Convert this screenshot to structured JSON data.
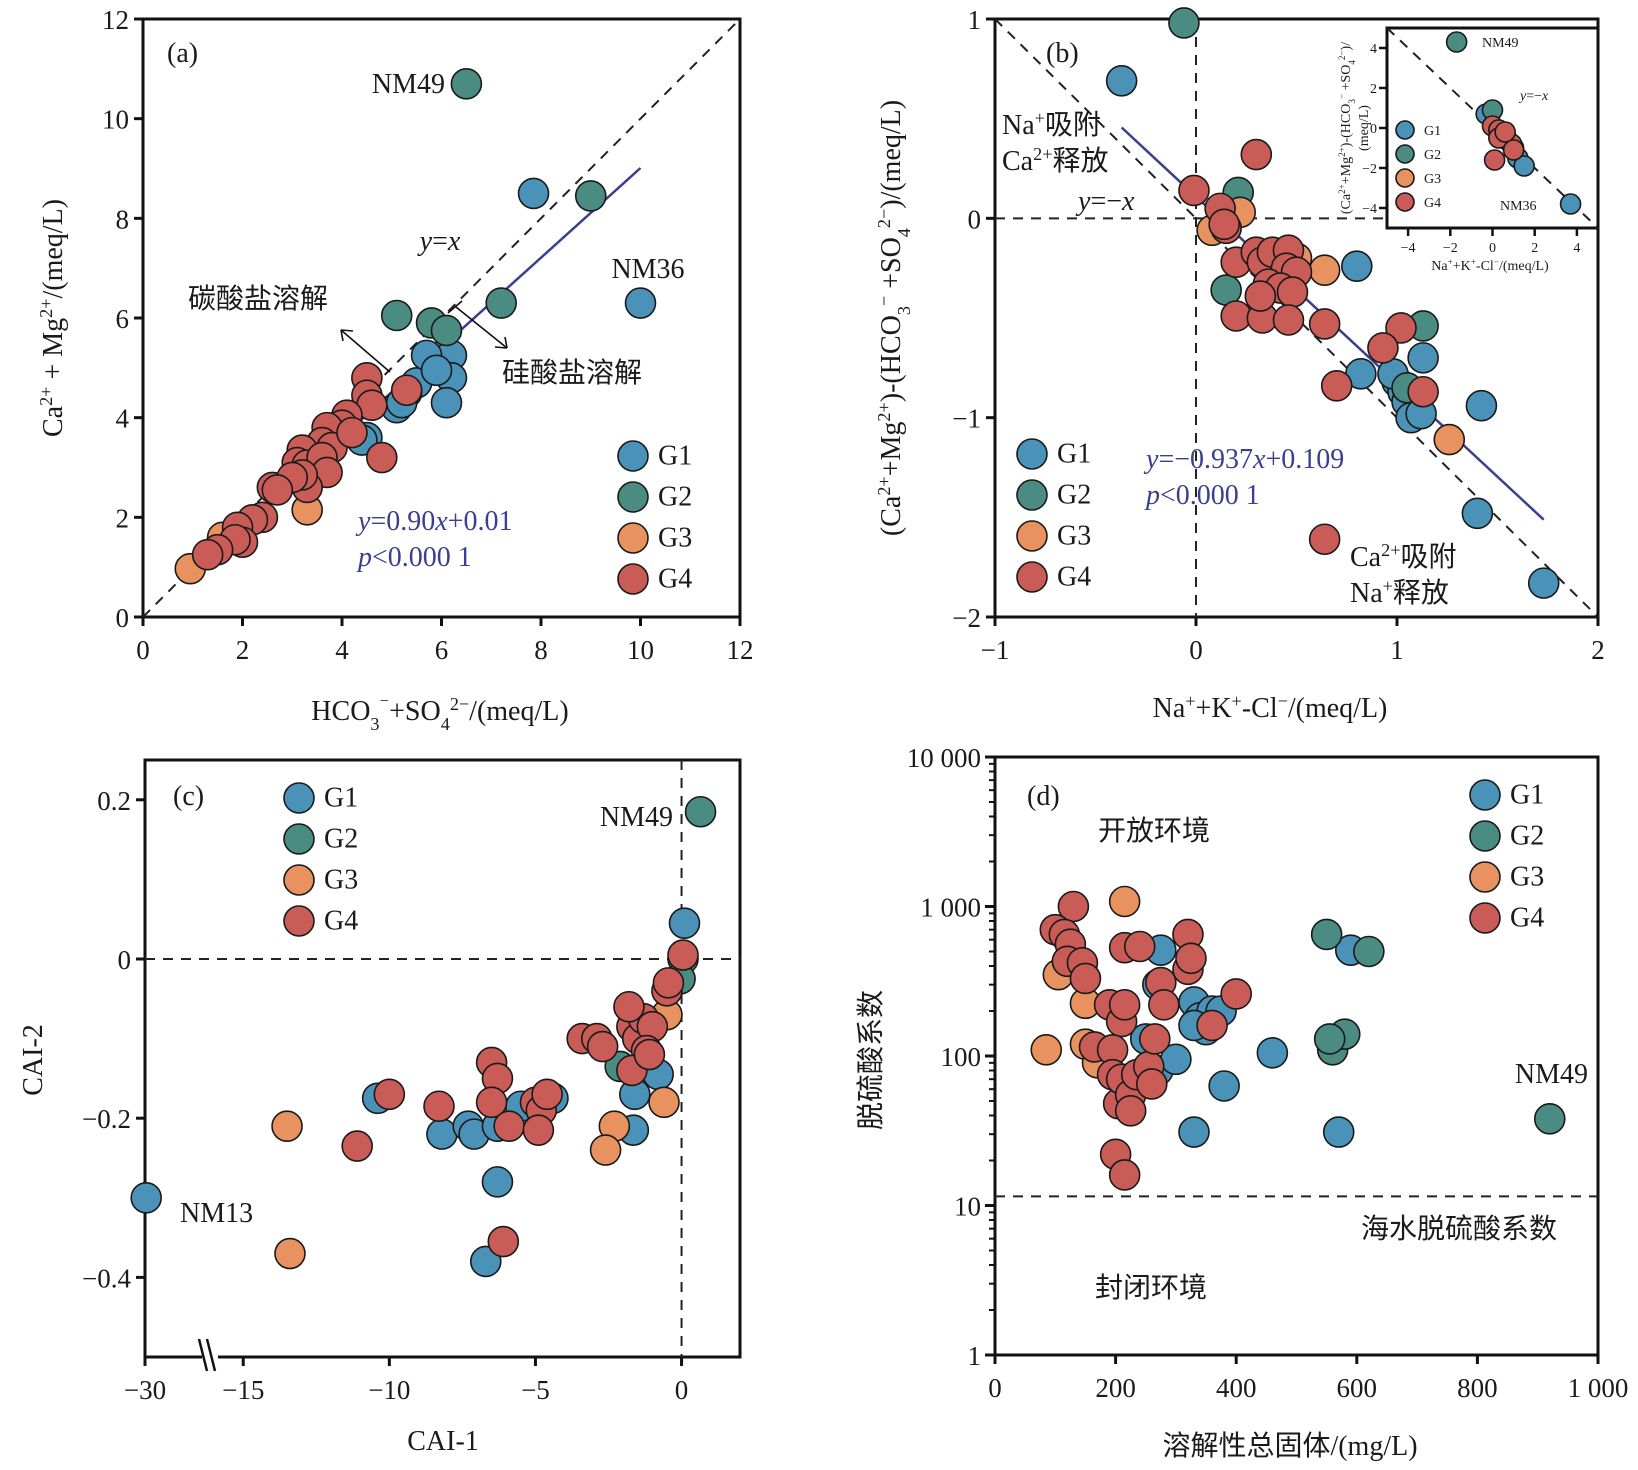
{
  "colors": {
    "G1": "#4a92b8",
    "G2": "#4a8c82",
    "G3": "#e8935f",
    "G4": "#c95c57",
    "fit": "#3a3f8f"
  },
  "chart_data": [
    {
      "id": "a",
      "type": "scatter",
      "panel_label": "(a)",
      "xlabel": "HCO3⁻+SO4²⁻/(meq/L)",
      "ylabel": "Ca²⁺+Mg²⁺/(meq/L)",
      "xlim": [
        0,
        12
      ],
      "ylim": [
        0,
        12
      ],
      "xticks": [
        "0",
        "2",
        "4",
        "6",
        "8",
        "10",
        "12"
      ],
      "yticks": [
        "0",
        "2",
        "4",
        "6",
        "8",
        "10",
        "12"
      ],
      "legend": [
        "G1",
        "G2",
        "G3",
        "G4"
      ],
      "legend_position": "bottom-right",
      "reference_line": {
        "label": "y=x",
        "slope": 1,
        "intercept": 0
      },
      "fit": {
        "equation": "y=0.90x+0.01",
        "p": "p<0.000 1",
        "slope": 0.9,
        "intercept": 0.01,
        "x_range": [
          1,
          10
        ]
      },
      "annotations": {
        "above": "碳酸盐溶解",
        "below": "硅酸盐溶解",
        "nm49": "NM49",
        "nm36": "NM36",
        "yx": "y=x"
      },
      "series": [
        {
          "name": "G1",
          "points": [
            [
              7.85,
              8.5
            ],
            [
              10.0,
              6.3
            ],
            [
              6.1,
              5.3
            ],
            [
              5.9,
              5.1
            ],
            [
              6.2,
              5.25
            ],
            [
              6.2,
              4.8
            ],
            [
              6.1,
              4.3
            ],
            [
              5.5,
              4.7
            ],
            [
              5.3,
              4.5
            ],
            [
              5.1,
              4.2
            ],
            [
              5.2,
              4.3
            ],
            [
              4.5,
              3.6
            ],
            [
              4.4,
              3.55
            ],
            [
              5.7,
              5.25
            ],
            [
              5.9,
              4.95
            ]
          ]
        },
        {
          "name": "G2",
          "points": [
            [
              6.5,
              10.7
            ],
            [
              9.0,
              8.45
            ],
            [
              7.2,
              6.3
            ],
            [
              5.1,
              6.05
            ],
            [
              5.8,
              5.9
            ],
            [
              6.1,
              5.75
            ]
          ]
        },
        {
          "name": "G3",
          "points": [
            [
              0.95,
              0.97
            ],
            [
              3.3,
              2.15
            ],
            [
              1.6,
              1.6
            ],
            [
              3.1,
              2.9
            ]
          ]
        },
        {
          "name": "G4",
          "points": [
            [
              4.5,
              4.8
            ],
            [
              4.5,
              4.45
            ],
            [
              4.6,
              4.25
            ],
            [
              5.3,
              4.55
            ],
            [
              4.1,
              4.05
            ],
            [
              4.0,
              3.85
            ],
            [
              3.7,
              3.8
            ],
            [
              3.6,
              3.5
            ],
            [
              3.8,
              3.4
            ],
            [
              3.2,
              3.35
            ],
            [
              3.1,
              3.1
            ],
            [
              3.3,
              3.05
            ],
            [
              3.6,
              3.2
            ],
            [
              3.7,
              2.9
            ],
            [
              3.3,
              2.6
            ],
            [
              3.2,
              2.85
            ],
            [
              2.6,
              2.6
            ],
            [
              2.4,
              2.0
            ],
            [
              2.2,
              1.95
            ],
            [
              1.9,
              1.8
            ],
            [
              2.0,
              1.5
            ],
            [
              1.85,
              1.55
            ],
            [
              1.5,
              1.35
            ],
            [
              1.3,
              1.25
            ],
            [
              4.8,
              3.2
            ],
            [
              4.2,
              3.7
            ],
            [
              3.0,
              2.8
            ],
            [
              2.7,
              2.55
            ]
          ]
        }
      ]
    },
    {
      "id": "b",
      "type": "scatter",
      "panel_label": "(b)",
      "xlabel": "Na⁺+K⁺-Cl⁻/(meq/L)",
      "ylabel": "(Ca²⁺+Mg²⁺)-(HCO3⁻+SO4²⁻)/(meq/L)",
      "xlim": [
        -1,
        2
      ],
      "ylim": [
        -2,
        1
      ],
      "xticks": [
        "−1",
        "0",
        "1",
        "2"
      ],
      "yticks": [
        "−2",
        "−1",
        "0",
        "1"
      ],
      "legend": [
        "G1",
        "G2",
        "G3",
        "G4"
      ],
      "legend_position": "bottom-left",
      "reference_line": {
        "label": "y=−x",
        "slope": -1,
        "intercept": 0
      },
      "fit": {
        "equation": "y=−0.937x+0.109",
        "p": "p<0.000 1",
        "slope": -0.937,
        "intercept": 0.109,
        "x_range": [
          -0.37,
          1.73
        ]
      },
      "annotations": {
        "upper_left_1": "Na⁺吸附",
        "upper_left_2": "Ca²⁺释放",
        "lower_right_1": "Ca²⁺吸附",
        "lower_right_2": "Na⁺释放",
        "yx": "y=−x"
      },
      "series": [
        {
          "name": "G1",
          "points": [
            [
              -0.37,
              0.69
            ],
            [
              0.8,
              -0.24
            ],
            [
              0.82,
              -0.78
            ],
            [
              1.0,
              -0.82
            ],
            [
              1.03,
              -0.87
            ],
            [
              1.05,
              -0.92
            ],
            [
              1.07,
              -1.0
            ],
            [
              1.12,
              -0.98
            ],
            [
              1.13,
              -0.7
            ],
            [
              1.42,
              -0.94
            ],
            [
              1.4,
              -1.48
            ],
            [
              1.73,
              -1.83
            ],
            [
              0.98,
              -0.78
            ]
          ]
        },
        {
          "name": "G2",
          "points": [
            [
              -0.06,
              0.98
            ],
            [
              0.21,
              0.13
            ],
            [
              0.15,
              -0.36
            ],
            [
              1.13,
              -0.54
            ],
            [
              1.05,
              -0.85
            ]
          ]
        },
        {
          "name": "G3",
          "points": [
            [
              0.08,
              -0.06
            ],
            [
              0.22,
              0.03
            ],
            [
              0.64,
              -0.26
            ],
            [
              1.26,
              -1.11
            ],
            [
              0.5,
              -0.2
            ]
          ]
        },
        {
          "name": "G4",
          "points": [
            [
              0.3,
              0.32
            ],
            [
              -0.01,
              0.14
            ],
            [
              0.12,
              0.05
            ],
            [
              0.15,
              -0.05
            ],
            [
              0.14,
              -0.03
            ],
            [
              0.2,
              -0.22
            ],
            [
              0.3,
              -0.17
            ],
            [
              0.33,
              -0.22
            ],
            [
              0.38,
              -0.17
            ],
            [
              0.46,
              -0.16
            ],
            [
              0.45,
              -0.25
            ],
            [
              0.5,
              -0.27
            ],
            [
              0.36,
              -0.33
            ],
            [
              0.42,
              -0.35
            ],
            [
              0.48,
              -0.37
            ],
            [
              0.2,
              -0.49
            ],
            [
              0.33,
              -0.5
            ],
            [
              0.46,
              -0.51
            ],
            [
              0.64,
              -0.53
            ],
            [
              1.02,
              -0.55
            ],
            [
              0.93,
              -0.65
            ],
            [
              0.7,
              -0.84
            ],
            [
              1.13,
              -0.87
            ],
            [
              0.64,
              -1.61
            ],
            [
              0.32,
              -0.39
            ]
          ]
        }
      ]
    },
    {
      "id": "c",
      "type": "scatter",
      "panel_label": "(c)",
      "xlabel": "CAI-1",
      "ylabel": "CAI-2",
      "xlim": [
        -30,
        2
      ],
      "x_break": [
        -29.5,
        -16
      ],
      "ylim": [
        -0.5,
        0.25
      ],
      "xticks": [
        "−30",
        "−15",
        "−10",
        "−5",
        "0"
      ],
      "yticks": [
        "−0.4",
        "−0.2",
        "0",
        "0.2"
      ],
      "legend": [
        "G1",
        "G2",
        "G3",
        "G4"
      ],
      "legend_position": "top-left",
      "annotations": {
        "nm49": "NM49",
        "nm13": "NM13"
      },
      "series": [
        {
          "name": "G1",
          "points": [
            [
              -29.8,
              -0.3
            ],
            [
              -10.4,
              -0.175
            ],
            [
              -8.2,
              -0.22
            ],
            [
              -7.3,
              -0.21
            ],
            [
              -7.1,
              -0.22
            ],
            [
              -6.3,
              -0.21
            ],
            [
              -6.3,
              -0.28
            ],
            [
              -6.7,
              -0.38
            ],
            [
              -5.5,
              -0.185
            ],
            [
              -4.4,
              -0.175
            ],
            [
              -1.6,
              -0.17
            ],
            [
              -1.65,
              -0.215
            ],
            [
              -0.8,
              -0.145
            ],
            [
              0.1,
              0.045
            ]
          ]
        },
        {
          "name": "G2",
          "points": [
            [
              0.65,
              0.185
            ],
            [
              0.05,
              0.0
            ],
            [
              -0.05,
              -0.025
            ],
            [
              -2.1,
              -0.135
            ]
          ]
        },
        {
          "name": "G3",
          "points": [
            [
              -13.5,
              -0.21
            ],
            [
              -13.4,
              -0.37
            ],
            [
              -2.3,
              -0.21
            ],
            [
              -2.6,
              -0.24
            ],
            [
              -0.6,
              -0.18
            ],
            [
              -0.5,
              -0.07
            ]
          ]
        },
        {
          "name": "G4",
          "points": [
            [
              -10.0,
              -0.17
            ],
            [
              -11.1,
              -0.235
            ],
            [
              -8.3,
              -0.185
            ],
            [
              -6.5,
              -0.13
            ],
            [
              -6.3,
              -0.15
            ],
            [
              -6.5,
              -0.18
            ],
            [
              -5.9,
              -0.21
            ],
            [
              -6.1,
              -0.355
            ],
            [
              -5.0,
              -0.18
            ],
            [
              -4.8,
              -0.19
            ],
            [
              -4.6,
              -0.17
            ],
            [
              -4.9,
              -0.215
            ],
            [
              -3.4,
              -0.1
            ],
            [
              -2.9,
              -0.1
            ],
            [
              -2.7,
              -0.11
            ],
            [
              -1.7,
              -0.085
            ],
            [
              -1.5,
              -0.1
            ],
            [
              -1.3,
              -0.075
            ],
            [
              -1.0,
              -0.085
            ],
            [
              -1.2,
              -0.115
            ],
            [
              -1.7,
              -0.14
            ],
            [
              -0.5,
              -0.04
            ],
            [
              -0.45,
              -0.03
            ],
            [
              0.05,
              0.005
            ],
            [
              -1.8,
              -0.06
            ],
            [
              -1.1,
              -0.12
            ]
          ]
        }
      ]
    },
    {
      "id": "d",
      "type": "scatter",
      "panel_label": "(d)",
      "xlabel": "溶解性总固体/(mg/L)",
      "ylabel": "脱硫酸系数",
      "xlim": [
        0,
        1000
      ],
      "ylim": [
        1,
        10000
      ],
      "yscale": "log",
      "xticks": [
        "0",
        "200",
        "400",
        "600",
        "800",
        "1 000"
      ],
      "yticks": [
        "1",
        "10",
        "100",
        "1 000",
        "10 000"
      ],
      "legend": [
        "G1",
        "G2",
        "G3",
        "G4"
      ],
      "legend_position": "top-right",
      "reference_line": {
        "label": "海水脱硫酸系数",
        "y": 11.5
      },
      "annotations": {
        "open": "开放环境",
        "closed": "封闭环境",
        "nm49": "NM49",
        "sea": "海水脱硫酸系数"
      },
      "series": [
        {
          "name": "G1",
          "points": [
            [
              275,
              510
            ],
            [
              270,
              300
            ],
            [
              250,
              130
            ],
            [
              270,
              80
            ],
            [
              300,
              95
            ],
            [
              330,
              230
            ],
            [
              340,
              180
            ],
            [
              350,
              150
            ],
            [
              360,
              200
            ],
            [
              375,
              200
            ],
            [
              330,
              160
            ],
            [
              380,
              63
            ],
            [
              460,
              105
            ],
            [
              330,
              31
            ],
            [
              570,
              31
            ],
            [
              590,
              510
            ]
          ]
        },
        {
          "name": "G2",
          "points": [
            [
              550,
              650
            ],
            [
              620,
              500
            ],
            [
              560,
              110
            ],
            [
              580,
              140
            ],
            [
              555,
              130
            ],
            [
              920,
              38
            ]
          ]
        },
        {
          "name": "G3",
          "points": [
            [
              85,
              110
            ],
            [
              105,
              350
            ],
            [
              150,
              225
            ],
            [
              150,
              120
            ],
            [
              170,
              90
            ],
            [
              215,
              1080
            ]
          ]
        },
        {
          "name": "G4",
          "points": [
            [
              130,
              1000
            ],
            [
              100,
              700
            ],
            [
              115,
              650
            ],
            [
              125,
              560
            ],
            [
              120,
              430
            ],
            [
              145,
              420
            ],
            [
              150,
              330
            ],
            [
              190,
              220
            ],
            [
              210,
              170
            ],
            [
              215,
              220
            ],
            [
              165,
              115
            ],
            [
              195,
              110
            ],
            [
              195,
              75
            ],
            [
              205,
              48
            ],
            [
              210,
              70
            ],
            [
              225,
              55
            ],
            [
              225,
              43
            ],
            [
              235,
              75
            ],
            [
              255,
              85
            ],
            [
              260,
              65
            ],
            [
              265,
              130
            ],
            [
              275,
              310
            ],
            [
              280,
              220
            ],
            [
              320,
              650
            ],
            [
              320,
              380
            ],
            [
              325,
              450
            ],
            [
              360,
              160
            ],
            [
              400,
              260
            ],
            [
              215,
              530
            ],
            [
              240,
              540
            ],
            [
              200,
              22
            ],
            [
              215,
              16
            ]
          ]
        }
      ]
    }
  ]
}
